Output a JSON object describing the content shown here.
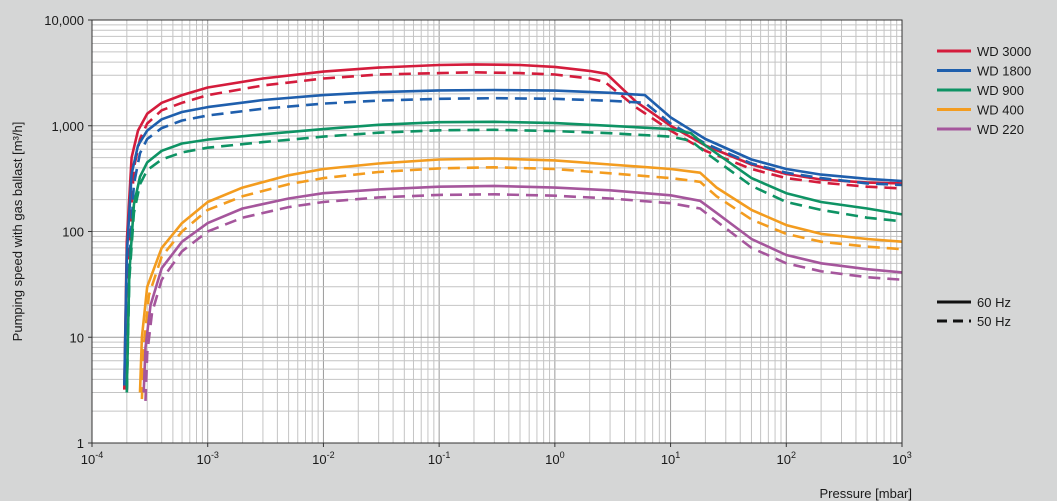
{
  "chart_data": {
    "type": "line",
    "xscale": "log",
    "yscale": "log",
    "xlim": [
      0.0001,
      1000
    ],
    "ylim": [
      1,
      10000
    ],
    "xlabel": "Pressure [mbar]",
    "ylabel": "Pumping speed with gas ballast [m³/h]",
    "x_ticks": [
      {
        "value": 0.0001,
        "base": "10",
        "exp": "-4"
      },
      {
        "value": 0.001,
        "base": "10",
        "exp": "-3"
      },
      {
        "value": 0.01,
        "base": "10",
        "exp": "-2"
      },
      {
        "value": 0.1,
        "base": "10",
        "exp": "-1"
      },
      {
        "value": 1,
        "base": "10",
        "exp": "0"
      },
      {
        "value": 10,
        "base": "10",
        "exp": "1"
      },
      {
        "value": 100,
        "base": "10",
        "exp": "2"
      },
      {
        "value": 1000,
        "base": "10",
        "exp": "3"
      }
    ],
    "y_ticks": [
      {
        "value": 1,
        "label": "1"
      },
      {
        "value": 10,
        "label": "10"
      },
      {
        "value": 100,
        "label": "100"
      },
      {
        "value": 1000,
        "label": "1,000"
      },
      {
        "value": 10000,
        "label": "10,000"
      }
    ],
    "grid": true,
    "legend_position": "right",
    "series": [
      {
        "name": "WD 3000",
        "color": "#d41c3c",
        "frequency": "60 Hz",
        "dash": false,
        "points": [
          [
            0.00019,
            3.2
          ],
          [
            0.0002,
            80
          ],
          [
            0.00022,
            500
          ],
          [
            0.00025,
            900
          ],
          [
            0.0003,
            1300
          ],
          [
            0.0004,
            1650
          ],
          [
            0.0006,
            1950
          ],
          [
            0.001,
            2300
          ],
          [
            0.003,
            2800
          ],
          [
            0.01,
            3250
          ],
          [
            0.03,
            3550
          ],
          [
            0.1,
            3750
          ],
          [
            0.2,
            3800
          ],
          [
            0.5,
            3750
          ],
          [
            1,
            3600
          ],
          [
            2,
            3300
          ],
          [
            2.8,
            3100
          ],
          [
            5,
            1700
          ],
          [
            10,
            1000
          ],
          [
            20,
            650
          ],
          [
            50,
            430
          ],
          [
            100,
            350
          ],
          [
            200,
            310
          ],
          [
            500,
            290
          ],
          [
            1000,
            285
          ]
        ]
      },
      {
        "name": "WD 3000",
        "color": "#d41c3c",
        "frequency": "50 Hz",
        "dash": true,
        "points": [
          [
            0.0002,
            3.0
          ],
          [
            0.00021,
            70
          ],
          [
            0.00023,
            400
          ],
          [
            0.00026,
            750
          ],
          [
            0.0003,
            1050
          ],
          [
            0.0004,
            1400
          ],
          [
            0.0006,
            1650
          ],
          [
            0.001,
            1950
          ],
          [
            0.003,
            2400
          ],
          [
            0.01,
            2800
          ],
          [
            0.03,
            3050
          ],
          [
            0.1,
            3150
          ],
          [
            0.2,
            3200
          ],
          [
            0.5,
            3150
          ],
          [
            1,
            3050
          ],
          [
            2,
            2800
          ],
          [
            2.7,
            2600
          ],
          [
            5,
            1500
          ],
          [
            10,
            900
          ],
          [
            20,
            580
          ],
          [
            50,
            390
          ],
          [
            100,
            320
          ],
          [
            200,
            290
          ],
          [
            500,
            265
          ],
          [
            1000,
            255
          ]
        ]
      },
      {
        "name": "WD 1800",
        "color": "#1f5fad",
        "frequency": "60 Hz",
        "dash": false,
        "points": [
          [
            0.00019,
            3.5
          ],
          [
            0.0002,
            60
          ],
          [
            0.00022,
            350
          ],
          [
            0.00025,
            650
          ],
          [
            0.0003,
            900
          ],
          [
            0.0004,
            1150
          ],
          [
            0.0006,
            1350
          ],
          [
            0.001,
            1500
          ],
          [
            0.003,
            1750
          ],
          [
            0.01,
            1950
          ],
          [
            0.03,
            2080
          ],
          [
            0.1,
            2160
          ],
          [
            0.3,
            2180
          ],
          [
            1,
            2150
          ],
          [
            3,
            2050
          ],
          [
            6,
            1950
          ],
          [
            10,
            1200
          ],
          [
            20,
            750
          ],
          [
            50,
            480
          ],
          [
            100,
            390
          ],
          [
            200,
            345
          ],
          [
            500,
            315
          ],
          [
            1000,
            300
          ]
        ]
      },
      {
        "name": "WD 1800",
        "color": "#1f5fad",
        "frequency": "50 Hz",
        "dash": true,
        "points": [
          [
            0.0002,
            3.2
          ],
          [
            0.00021,
            50
          ],
          [
            0.00023,
            280
          ],
          [
            0.00026,
            550
          ],
          [
            0.0003,
            750
          ],
          [
            0.0004,
            950
          ],
          [
            0.0006,
            1120
          ],
          [
            0.001,
            1250
          ],
          [
            0.003,
            1450
          ],
          [
            0.01,
            1620
          ],
          [
            0.03,
            1730
          ],
          [
            0.1,
            1800
          ],
          [
            0.3,
            1820
          ],
          [
            1,
            1800
          ],
          [
            3,
            1720
          ],
          [
            6,
            1650
          ],
          [
            10,
            1050
          ],
          [
            20,
            680
          ],
          [
            50,
            440
          ],
          [
            100,
            360
          ],
          [
            200,
            320
          ],
          [
            500,
            285
          ],
          [
            1000,
            275
          ]
        ]
      },
      {
        "name": "WD 900",
        "color": "#0e9364",
        "frequency": "60 Hz",
        "dash": false,
        "points": [
          [
            0.0002,
            3.2
          ],
          [
            0.00021,
            40
          ],
          [
            0.00023,
            180
          ],
          [
            0.00026,
            330
          ],
          [
            0.0003,
            450
          ],
          [
            0.0004,
            580
          ],
          [
            0.0006,
            680
          ],
          [
            0.001,
            740
          ],
          [
            0.003,
            830
          ],
          [
            0.01,
            930
          ],
          [
            0.03,
            1020
          ],
          [
            0.1,
            1080
          ],
          [
            0.3,
            1090
          ],
          [
            1,
            1060
          ],
          [
            3,
            1000
          ],
          [
            10,
            930
          ],
          [
            15,
            850
          ],
          [
            20,
            650
          ],
          [
            50,
            320
          ],
          [
            100,
            230
          ],
          [
            200,
            190
          ],
          [
            500,
            165
          ],
          [
            1000,
            145
          ]
        ]
      },
      {
        "name": "WD 900",
        "color": "#0e9364",
        "frequency": "50 Hz",
        "dash": true,
        "points": [
          [
            0.0002,
            3.0
          ],
          [
            0.00021,
            35
          ],
          [
            0.00023,
            150
          ],
          [
            0.00026,
            280
          ],
          [
            0.0003,
            380
          ],
          [
            0.0004,
            480
          ],
          [
            0.0006,
            560
          ],
          [
            0.001,
            620
          ],
          [
            0.003,
            700
          ],
          [
            0.01,
            790
          ],
          [
            0.03,
            860
          ],
          [
            0.1,
            905
          ],
          [
            0.3,
            915
          ],
          [
            1,
            890
          ],
          [
            3,
            850
          ],
          [
            10,
            790
          ],
          [
            15,
            720
          ],
          [
            20,
            560
          ],
          [
            50,
            270
          ],
          [
            100,
            190
          ],
          [
            200,
            160
          ],
          [
            500,
            135
          ],
          [
            1000,
            125
          ]
        ]
      },
      {
        "name": "WD 400",
        "color": "#f39c1f",
        "frequency": "60 Hz",
        "dash": false,
        "points": [
          [
            0.00026,
            3.0
          ],
          [
            0.00027,
            10
          ],
          [
            0.0003,
            30
          ],
          [
            0.0004,
            70
          ],
          [
            0.0006,
            120
          ],
          [
            0.001,
            190
          ],
          [
            0.002,
            260
          ],
          [
            0.005,
            340
          ],
          [
            0.01,
            390
          ],
          [
            0.03,
            440
          ],
          [
            0.1,
            480
          ],
          [
            0.3,
            490
          ],
          [
            1,
            470
          ],
          [
            3,
            430
          ],
          [
            10,
            390
          ],
          [
            18,
            360
          ],
          [
            25,
            260
          ],
          [
            50,
            160
          ],
          [
            100,
            115
          ],
          [
            200,
            95
          ],
          [
            500,
            85
          ],
          [
            1000,
            80
          ]
        ]
      },
      {
        "name": "WD 400",
        "color": "#f39c1f",
        "frequency": "50 Hz",
        "dash": true,
        "points": [
          [
            0.00027,
            2.6
          ],
          [
            0.00028,
            8
          ],
          [
            0.00031,
            25
          ],
          [
            0.0004,
            58
          ],
          [
            0.0006,
            100
          ],
          [
            0.001,
            160
          ],
          [
            0.002,
            215
          ],
          [
            0.005,
            280
          ],
          [
            0.01,
            320
          ],
          [
            0.03,
            365
          ],
          [
            0.1,
            395
          ],
          [
            0.3,
            405
          ],
          [
            1,
            390
          ],
          [
            3,
            355
          ],
          [
            10,
            320
          ],
          [
            18,
            295
          ],
          [
            25,
            215
          ],
          [
            50,
            130
          ],
          [
            100,
            95
          ],
          [
            200,
            80
          ],
          [
            500,
            72
          ],
          [
            1000,
            68
          ]
        ]
      },
      {
        "name": "WD 220",
        "color": "#a5569c",
        "frequency": "60 Hz",
        "dash": false,
        "points": [
          [
            0.00028,
            3.0
          ],
          [
            0.00029,
            8
          ],
          [
            0.00032,
            20
          ],
          [
            0.0004,
            45
          ],
          [
            0.0006,
            80
          ],
          [
            0.001,
            120
          ],
          [
            0.002,
            165
          ],
          [
            0.005,
            205
          ],
          [
            0.01,
            230
          ],
          [
            0.03,
            250
          ],
          [
            0.1,
            265
          ],
          [
            0.3,
            270
          ],
          [
            1,
            260
          ],
          [
            3,
            245
          ],
          [
            10,
            220
          ],
          [
            18,
            195
          ],
          [
            25,
            150
          ],
          [
            50,
            85
          ],
          [
            100,
            60
          ],
          [
            200,
            50
          ],
          [
            500,
            44
          ],
          [
            1000,
            41
          ]
        ]
      },
      {
        "name": "WD 220",
        "color": "#a5569c",
        "frequency": "50 Hz",
        "dash": true,
        "points": [
          [
            0.00029,
            2.5
          ],
          [
            0.0003,
            7
          ],
          [
            0.00033,
            17
          ],
          [
            0.0004,
            35
          ],
          [
            0.0006,
            65
          ],
          [
            0.001,
            100
          ],
          [
            0.002,
            135
          ],
          [
            0.005,
            170
          ],
          [
            0.01,
            190
          ],
          [
            0.03,
            210
          ],
          [
            0.1,
            222
          ],
          [
            0.3,
            225
          ],
          [
            1,
            218
          ],
          [
            3,
            205
          ],
          [
            10,
            185
          ],
          [
            18,
            165
          ],
          [
            25,
            125
          ],
          [
            50,
            70
          ],
          [
            100,
            50
          ],
          [
            200,
            42
          ],
          [
            500,
            37
          ],
          [
            1000,
            35
          ]
        ]
      }
    ],
    "legend": {
      "models": [
        {
          "label": "WD 3000",
          "color": "#d41c3c"
        },
        {
          "label": "WD 1800",
          "color": "#1f5fad"
        },
        {
          "label": "WD 900",
          "color": "#0e9364"
        },
        {
          "label": "WD 400",
          "color": "#f39c1f"
        },
        {
          "label": "WD 220",
          "color": "#a5569c"
        }
      ],
      "frequencies": [
        {
          "label": "60 Hz",
          "dash": false
        },
        {
          "label": "50 Hz",
          "dash": true
        }
      ]
    }
  }
}
